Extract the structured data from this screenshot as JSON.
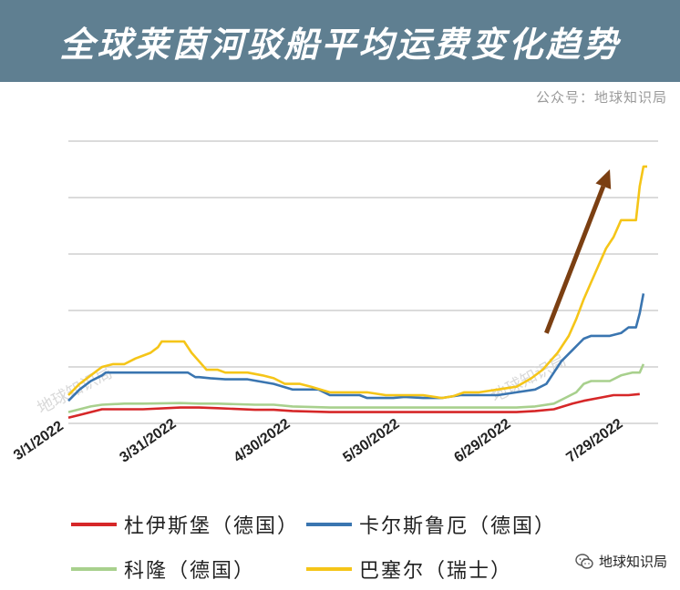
{
  "header": {
    "title": "全球莱茵河驳船平均运费变化趋势"
  },
  "source": "公众号：地球知识局",
  "watermark": {
    "chart_text": "地球知识局",
    "account": "地球知识局",
    "icon": "wechat-icon"
  },
  "colors": {
    "banner": "#5f7f91",
    "Duisburg": "#d62728",
    "Karlsruhe": "#3a75b0",
    "Cologne": "#a8d08d",
    "Basel": "#f5c518",
    "arrow": "#7b3f12"
  },
  "chart_data": {
    "type": "line",
    "title": "全球莱茵河驳船平均运费变化趋势",
    "xlabel": "",
    "ylabel": "",
    "x_ticks": [
      "3/1/2022",
      "3/31/2022",
      "4/30/2022",
      "5/30/2022",
      "6/29/2022",
      "7/29/2022"
    ],
    "x_range": [
      0,
      155
    ],
    "ylim": [
      0,
      5
    ],
    "y_gridlines": [
      0,
      1,
      2,
      3,
      4,
      5
    ],
    "y_tick_labels": false,
    "grid": true,
    "legend": "bottom",
    "series": [
      {
        "name": "杜伊斯堡（德国）",
        "color_key": "Duisburg",
        "points": [
          [
            0,
            0.1
          ],
          [
            3,
            0.15
          ],
          [
            6,
            0.2
          ],
          [
            9,
            0.25
          ],
          [
            15,
            0.25
          ],
          [
            20,
            0.25
          ],
          [
            30,
            0.28
          ],
          [
            35,
            0.28
          ],
          [
            40,
            0.27
          ],
          [
            50,
            0.24
          ],
          [
            55,
            0.24
          ],
          [
            60,
            0.22
          ],
          [
            70,
            0.2
          ],
          [
            80,
            0.2
          ],
          [
            90,
            0.2
          ],
          [
            100,
            0.2
          ],
          [
            110,
            0.2
          ],
          [
            120,
            0.2
          ],
          [
            125,
            0.22
          ],
          [
            130,
            0.25
          ],
          [
            135,
            0.35
          ],
          [
            138,
            0.4
          ],
          [
            142,
            0.45
          ],
          [
            146,
            0.5
          ],
          [
            150,
            0.5
          ],
          [
            153,
            0.52
          ]
        ]
      },
      {
        "name": "卡尔斯鲁厄（德国）",
        "color_key": "Karlsruhe",
        "points": [
          [
            0,
            0.4
          ],
          [
            3,
            0.6
          ],
          [
            6,
            0.75
          ],
          [
            9,
            0.85
          ],
          [
            10,
            0.9
          ],
          [
            12,
            0.9
          ],
          [
            15,
            0.9
          ],
          [
            20,
            0.9
          ],
          [
            25,
            0.9
          ],
          [
            30,
            0.9
          ],
          [
            32,
            0.9
          ],
          [
            34,
            0.82
          ],
          [
            35,
            0.82
          ],
          [
            38,
            0.8
          ],
          [
            42,
            0.78
          ],
          [
            48,
            0.78
          ],
          [
            55,
            0.7
          ],
          [
            60,
            0.6
          ],
          [
            67,
            0.6
          ],
          [
            70,
            0.5
          ],
          [
            78,
            0.5
          ],
          [
            80,
            0.45
          ],
          [
            87,
            0.45
          ],
          [
            90,
            0.47
          ],
          [
            95,
            0.45
          ],
          [
            100,
            0.45
          ],
          [
            105,
            0.5
          ],
          [
            110,
            0.5
          ],
          [
            115,
            0.5
          ],
          [
            120,
            0.55
          ],
          [
            125,
            0.6
          ],
          [
            128,
            0.7
          ],
          [
            130,
            0.9
          ],
          [
            132,
            1.1
          ],
          [
            135,
            1.3
          ],
          [
            138,
            1.5
          ],
          [
            140,
            1.55
          ],
          [
            145,
            1.55
          ],
          [
            148,
            1.6
          ],
          [
            150,
            1.7
          ],
          [
            152,
            1.7
          ],
          [
            153,
            1.95
          ],
          [
            154,
            2.3
          ]
        ]
      },
      {
        "name": "科隆（德国）",
        "color_key": "Cologne",
        "points": [
          [
            0,
            0.2
          ],
          [
            3,
            0.25
          ],
          [
            6,
            0.3
          ],
          [
            9,
            0.33
          ],
          [
            15,
            0.35
          ],
          [
            20,
            0.35
          ],
          [
            30,
            0.36
          ],
          [
            35,
            0.35
          ],
          [
            40,
            0.35
          ],
          [
            50,
            0.33
          ],
          [
            55,
            0.33
          ],
          [
            60,
            0.3
          ],
          [
            70,
            0.28
          ],
          [
            80,
            0.28
          ],
          [
            90,
            0.28
          ],
          [
            100,
            0.28
          ],
          [
            110,
            0.28
          ],
          [
            120,
            0.28
          ],
          [
            125,
            0.3
          ],
          [
            130,
            0.35
          ],
          [
            133,
            0.45
          ],
          [
            136,
            0.55
          ],
          [
            138,
            0.7
          ],
          [
            140,
            0.75
          ],
          [
            145,
            0.75
          ],
          [
            148,
            0.85
          ],
          [
            151,
            0.9
          ],
          [
            153,
            0.9
          ],
          [
            154,
            1.05
          ]
        ]
      },
      {
        "name": "巴塞尔（瑞士）",
        "color_key": "Basel",
        "points": [
          [
            0,
            0.5
          ],
          [
            3,
            0.7
          ],
          [
            6,
            0.85
          ],
          [
            9,
            1.0
          ],
          [
            12,
            1.05
          ],
          [
            15,
            1.05
          ],
          [
            18,
            1.15
          ],
          [
            20,
            1.2
          ],
          [
            22,
            1.25
          ],
          [
            24,
            1.35
          ],
          [
            25,
            1.45
          ],
          [
            28,
            1.45
          ],
          [
            30,
            1.45
          ],
          [
            31,
            1.45
          ],
          [
            33,
            1.25
          ],
          [
            35,
            1.1
          ],
          [
            37,
            0.95
          ],
          [
            40,
            0.95
          ],
          [
            42,
            0.9
          ],
          [
            48,
            0.9
          ],
          [
            52,
            0.85
          ],
          [
            55,
            0.8
          ],
          [
            58,
            0.7
          ],
          [
            62,
            0.7
          ],
          [
            65,
            0.65
          ],
          [
            70,
            0.55
          ],
          [
            75,
            0.55
          ],
          [
            80,
            0.55
          ],
          [
            85,
            0.5
          ],
          [
            88,
            0.5
          ],
          [
            90,
            0.5
          ],
          [
            95,
            0.5
          ],
          [
            100,
            0.45
          ],
          [
            103,
            0.48
          ],
          [
            106,
            0.55
          ],
          [
            110,
            0.55
          ],
          [
            115,
            0.6
          ],
          [
            120,
            0.65
          ],
          [
            124,
            0.8
          ],
          [
            127,
            0.95
          ],
          [
            129,
            1.1
          ],
          [
            131,
            1.25
          ],
          [
            134,
            1.55
          ],
          [
            136,
            1.85
          ],
          [
            138,
            2.2
          ],
          [
            140,
            2.5
          ],
          [
            142,
            2.8
          ],
          [
            144,
            3.1
          ],
          [
            146,
            3.3
          ],
          [
            148,
            3.6
          ],
          [
            152,
            3.6
          ],
          [
            153,
            4.2
          ],
          [
            154,
            4.55
          ],
          [
            155,
            4.55
          ]
        ]
      }
    ],
    "annotations": [
      {
        "type": "arrow",
        "from": [
          128,
          1.6
        ],
        "to": [
          145,
          4.5
        ],
        "color_key": "arrow"
      }
    ]
  },
  "legend_items": [
    {
      "label": "杜伊斯堡（德国）",
      "color_key": "Duisburg"
    },
    {
      "label": "卡尔斯鲁厄（德国）",
      "color_key": "Karlsruhe"
    },
    {
      "label": "科隆（德国）",
      "color_key": "Cologne"
    },
    {
      "label": "巴塞尔（瑞士）",
      "color_key": "Basel"
    }
  ]
}
